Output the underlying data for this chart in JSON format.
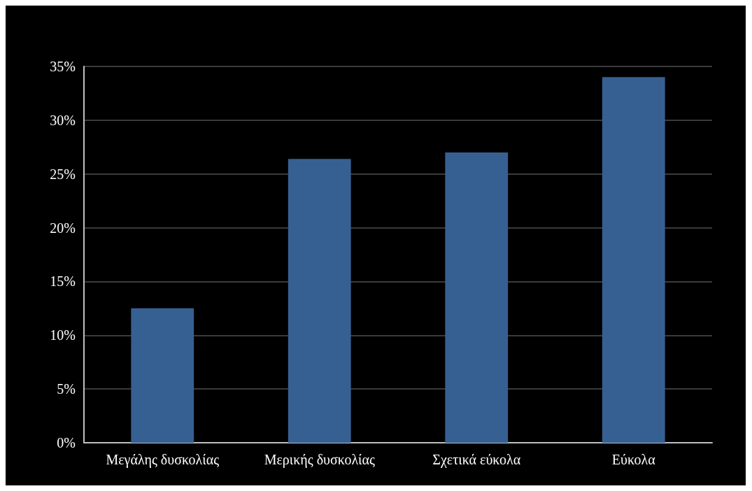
{
  "chart_data": {
    "type": "bar",
    "categories": [
      "Μεγάλης δυσκολίας",
      "Μερικής δυσκολίας",
      "Σχετικά εύκολα",
      "Εύκολα"
    ],
    "values": [
      12.5,
      26.4,
      27,
      34
    ],
    "color": "#376092",
    "ylim": [
      0,
      35
    ],
    "yticks": [
      {
        "value": 0,
        "label": "0%"
      },
      {
        "value": 5,
        "label": "5%"
      },
      {
        "value": 10,
        "label": "10%"
      },
      {
        "value": 15,
        "label": "15%"
      },
      {
        "value": 20,
        "label": "20%"
      },
      {
        "value": 25,
        "label": "25%"
      },
      {
        "value": 30,
        "label": "30%"
      },
      {
        "value": 35,
        "label": "35%"
      }
    ],
    "grid": true
  }
}
